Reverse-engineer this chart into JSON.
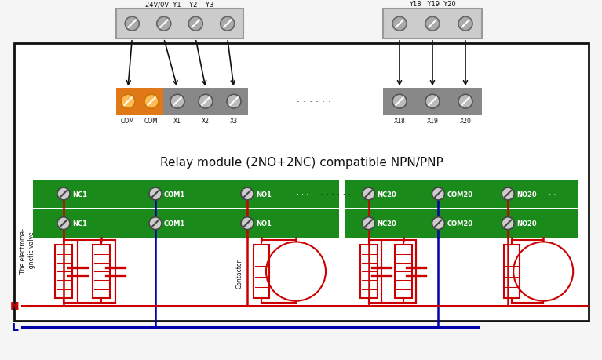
{
  "bg": "#f5f5f5",
  "black": "#111111",
  "red": "#cc0000",
  "blue": "#0000aa",
  "orange": "#e07818",
  "gray_dark": "#777777",
  "gray_light": "#aaaaaa",
  "green": "#1a8a1a",
  "white": "#ffffff",
  "title": "Relay module (2NO+2NC) compatible NPN/PNP",
  "label_valve": "The electroma-\n-gnetic valve",
  "label_contactor": "Contactor",
  "plc_left_labels": [
    "24V/0V",
    "Y1",
    "Y2",
    "Y3"
  ],
  "plc_right_labels": [
    "Y18",
    "Y19",
    "Y20"
  ],
  "input_labels_orange": [
    "COM",
    "COM"
  ],
  "input_labels_gray1": [
    "X1",
    "X2",
    "X3"
  ],
  "input_labels_gray2": [
    "X18",
    "X19",
    "X20"
  ],
  "relay_labels_left": [
    "NC1",
    "COM1",
    "NO1"
  ],
  "relay_labels_right": [
    "NC20",
    "COM20",
    "NO20"
  ]
}
